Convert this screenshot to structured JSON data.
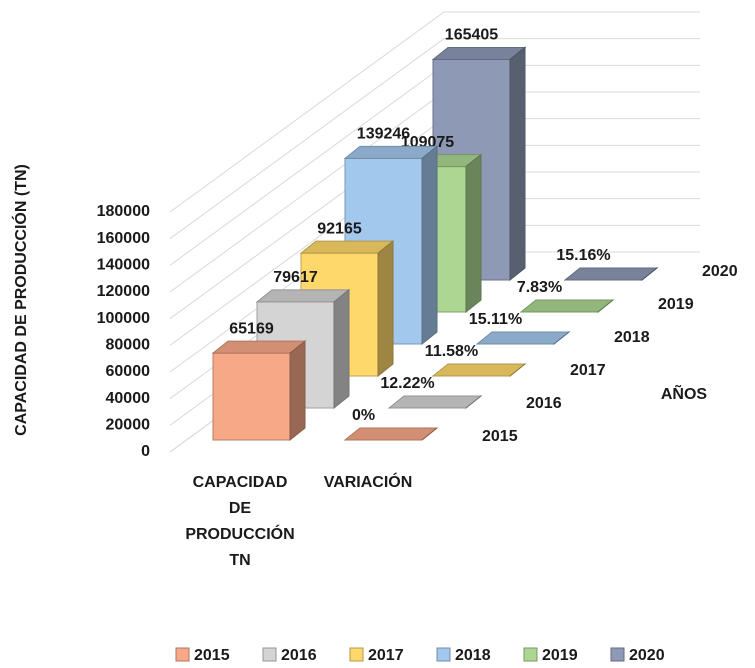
{
  "chart_data": {
    "type": "bar3d",
    "y_axis_label": "CAPACIDAD DE PRODUCCIÓN (TN)",
    "depth_axis_label": "AÑOS",
    "categories": [
      "CAPACIDAD DE PRODUCCIÓN TN",
      "VARIACIÓN"
    ],
    "series": [
      {
        "name": "2015",
        "color": "#f7a887",
        "values": [
          65169,
          0
        ],
        "value_labels": [
          "65169",
          "0%"
        ]
      },
      {
        "name": "2016",
        "color": "#d4d4d4",
        "values": [
          79617,
          12.22
        ],
        "value_labels": [
          "79617",
          "12.22%"
        ]
      },
      {
        "name": "2017",
        "color": "#ffd86b",
        "values": [
          92165,
          11.58
        ],
        "value_labels": [
          "92165",
          "11.58%"
        ]
      },
      {
        "name": "2018",
        "color": "#a3c8ee",
        "values": [
          139246,
          15.11
        ],
        "value_labels": [
          "139246",
          "15.11%"
        ]
      },
      {
        "name": "2019",
        "color": "#acd692",
        "values": [
          109075,
          7.83
        ],
        "value_labels": [
          "109075",
          "7.83%"
        ]
      },
      {
        "name": "2020",
        "color": "#8e99b6",
        "values": [
          165405,
          15.16
        ],
        "value_labels": [
          "165405",
          "15.16%"
        ]
      }
    ],
    "ylim": [
      0,
      180000
    ],
    "yticks": [
      0,
      20000,
      40000,
      60000,
      80000,
      100000,
      120000,
      140000,
      160000,
      180000
    ],
    "grid": true,
    "legend": "bottom"
  }
}
